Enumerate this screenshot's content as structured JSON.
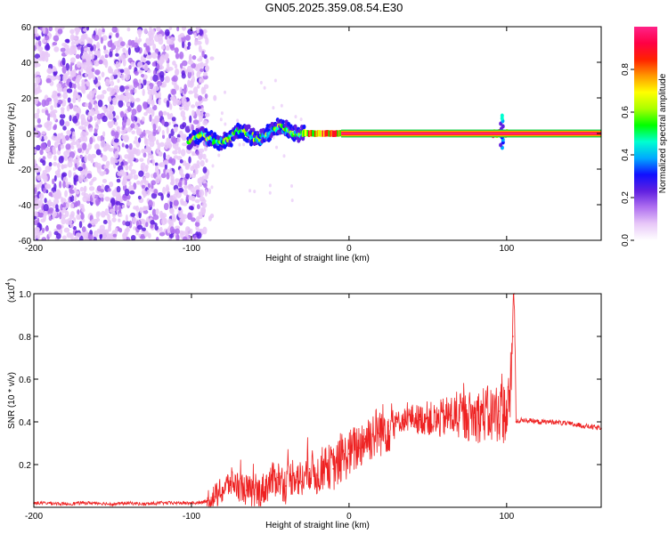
{
  "title": "GN05.2025.359.08.54.E30",
  "colors": {
    "snr_line": "#ee2222",
    "frame": "#000000",
    "colorbar": [
      "#ffffff",
      "#e8c8f8",
      "#b070f0",
      "#6020e0",
      "#1010ff",
      "#00aaff",
      "#00ffd0",
      "#00ff00",
      "#aaff00",
      "#ffff00",
      "#ff9900",
      "#ff2200",
      "#ff0044",
      "#ff2288"
    ]
  },
  "chart_data": [
    {
      "type": "heatmap",
      "xlabel": "Height of straight line (km)",
      "ylabel": "Frequency (Hz)",
      "xlim": [
        -200,
        160
      ],
      "ylim": [
        -60,
        60
      ],
      "xticks": [
        "-200",
        "-100",
        "0",
        "100"
      ],
      "yticks": [
        "60",
        "40",
        "20",
        "0",
        "-20",
        "-40",
        "-60"
      ],
      "colorbar": {
        "label": "Normalized spectral amplitude",
        "range": [
          0,
          1
        ],
        "ticks": [
          "0.0",
          "0.2",
          "0.4",
          "0.6",
          "0.8"
        ]
      },
      "regions": [
        {
          "x": [
            -200,
            -90
          ],
          "y": [
            -60,
            60
          ],
          "amplitude": "0.05-0.2",
          "pattern": "scattered speckle"
        },
        {
          "x": [
            -100,
            -30
          ],
          "y": [
            -15,
            8
          ],
          "amplitude": "0.2-0.6",
          "pattern": "wavering band"
        },
        {
          "x": [
            -30,
            100
          ],
          "y": [
            -2,
            2
          ],
          "amplitude": "0.6-1.0",
          "pattern": "narrow line near 0 Hz"
        },
        {
          "x": [
            100,
            160
          ],
          "y": [
            -1.5,
            1.5
          ],
          "amplitude": "1.0",
          "pattern": "constant line at 0 Hz"
        }
      ]
    },
    {
      "type": "line",
      "xlabel": "Height of straight line (km)",
      "ylabel": "SNR (10 * v/v)",
      "yscale_label": "(x10",
      "yscale_exponent": "4",
      "xlim": [
        -200,
        160
      ],
      "ylim": [
        0,
        1.0
      ],
      "xticks": [
        "-200",
        "-100",
        "0",
        "100"
      ],
      "yticks": [
        "0.2",
        "0.4",
        "0.6",
        "0.8",
        "1.0"
      ],
      "series": [
        {
          "x": [
            -200,
            -190,
            -180,
            -170,
            -160,
            -150,
            -140,
            -130,
            -120,
            -110,
            -100,
            -95,
            -90,
            -85,
            -80,
            -75,
            -70,
            -65,
            -60,
            -55,
            -50,
            -45,
            -40,
            -35,
            -30,
            -25,
            -20,
            -15,
            -10,
            -5,
            0,
            5,
            10,
            15,
            20,
            25,
            30,
            35,
            40,
            45,
            50,
            55,
            60,
            65,
            70,
            75,
            80,
            85,
            90,
            95,
            100,
            102,
            104,
            105,
            106,
            110,
            120,
            130,
            140,
            150,
            160
          ],
          "y": [
            0.02,
            0.02,
            0.015,
            0.02,
            0.02,
            0.015,
            0.02,
            0.015,
            0.02,
            0.02,
            0.02,
            0.02,
            0.03,
            0.05,
            0.08,
            0.12,
            0.1,
            0.08,
            0.06,
            0.08,
            0.12,
            0.14,
            0.1,
            0.16,
            0.12,
            0.18,
            0.15,
            0.2,
            0.18,
            0.22,
            0.25,
            0.28,
            0.32,
            0.34,
            0.36,
            0.38,
            0.4,
            0.41,
            0.42,
            0.41,
            0.42,
            0.4,
            0.42,
            0.43,
            0.42,
            0.43,
            0.42,
            0.44,
            0.43,
            0.45,
            0.44,
            0.5,
            0.8,
            1.0,
            0.4,
            0.41,
            0.4,
            0.4,
            0.39,
            0.38,
            0.37
          ]
        }
      ]
    }
  ]
}
